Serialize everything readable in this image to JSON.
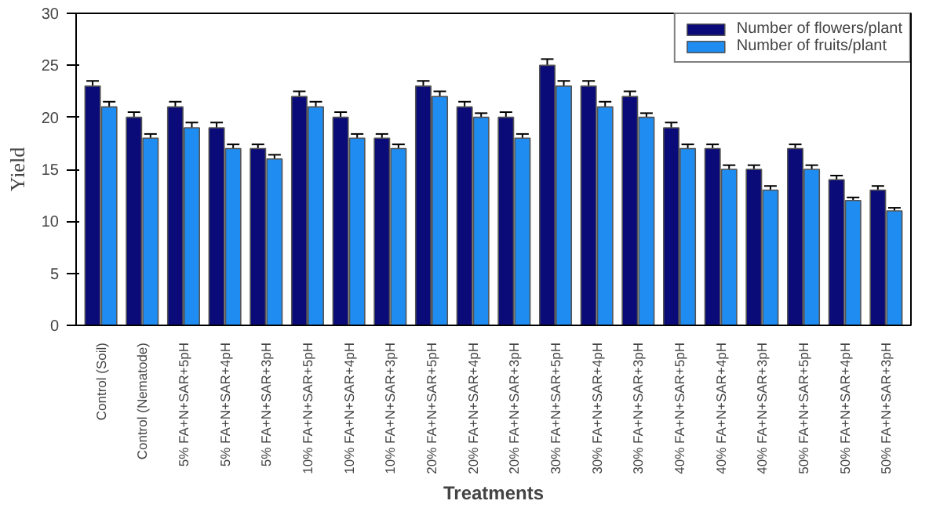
{
  "chart_data": {
    "type": "bar",
    "xlabel": "Treatments",
    "ylabel": "Yield",
    "categories": [
      "Control (Soil)",
      "Control (Nematode)",
      "5% FA+N+SAR+5pH",
      "5% FA+N+SAR+4pH",
      "5% FA+N+SAR+3pH",
      "10% FA+N+SAR+5pH",
      "10% FA+N+SAR+4pH",
      "10% FA+N+SAR+3pH",
      "20% FA+N+SAR+5pH",
      "20% FA+N+SAR+4pH",
      "20% FA+N+SAR+3pH",
      "30% FA+N+SAR+5pH",
      "30% FA+N+SAR+4pH",
      "30% FA+N+SAR+3pH",
      "40% FA+N+SAR+5pH",
      "40% FA+N+SAR+4pH",
      "40% FA+N+SAR+3pH",
      "50% FA+N+SAR+5pH",
      "50% FA+N+SAR+4pH",
      "50% FA+N+SAR+3pH"
    ],
    "series": [
      {
        "name": "Number of flowers/plant",
        "color": "#0a0a78",
        "values": [
          23,
          20,
          21,
          19,
          17,
          22,
          20,
          18,
          23,
          21,
          20,
          25,
          23,
          22,
          19,
          17,
          15,
          17,
          14,
          13
        ],
        "errors": [
          0.5,
          0.5,
          0.5,
          0.5,
          0.4,
          0.5,
          0.5,
          0.4,
          0.5,
          0.5,
          0.5,
          0.6,
          0.5,
          0.5,
          0.5,
          0.4,
          0.4,
          0.4,
          0.4,
          0.4
        ]
      },
      {
        "name": "Number of fruits/plant",
        "color": "#1e8cf0",
        "values": [
          21,
          18,
          19,
          17,
          16,
          21,
          18,
          17,
          22,
          20,
          18,
          23,
          21,
          20,
          17,
          15,
          13,
          15,
          12,
          11
        ],
        "errors": [
          0.5,
          0.4,
          0.5,
          0.4,
          0.4,
          0.5,
          0.4,
          0.4,
          0.5,
          0.4,
          0.4,
          0.5,
          0.5,
          0.4,
          0.4,
          0.4,
          0.4,
          0.4,
          0.3,
          0.3
        ]
      }
    ],
    "ylim": [
      0,
      30
    ],
    "yticks": [
      0,
      5,
      10,
      15,
      20,
      25,
      30
    ],
    "legend": "top right",
    "grid": false
  }
}
